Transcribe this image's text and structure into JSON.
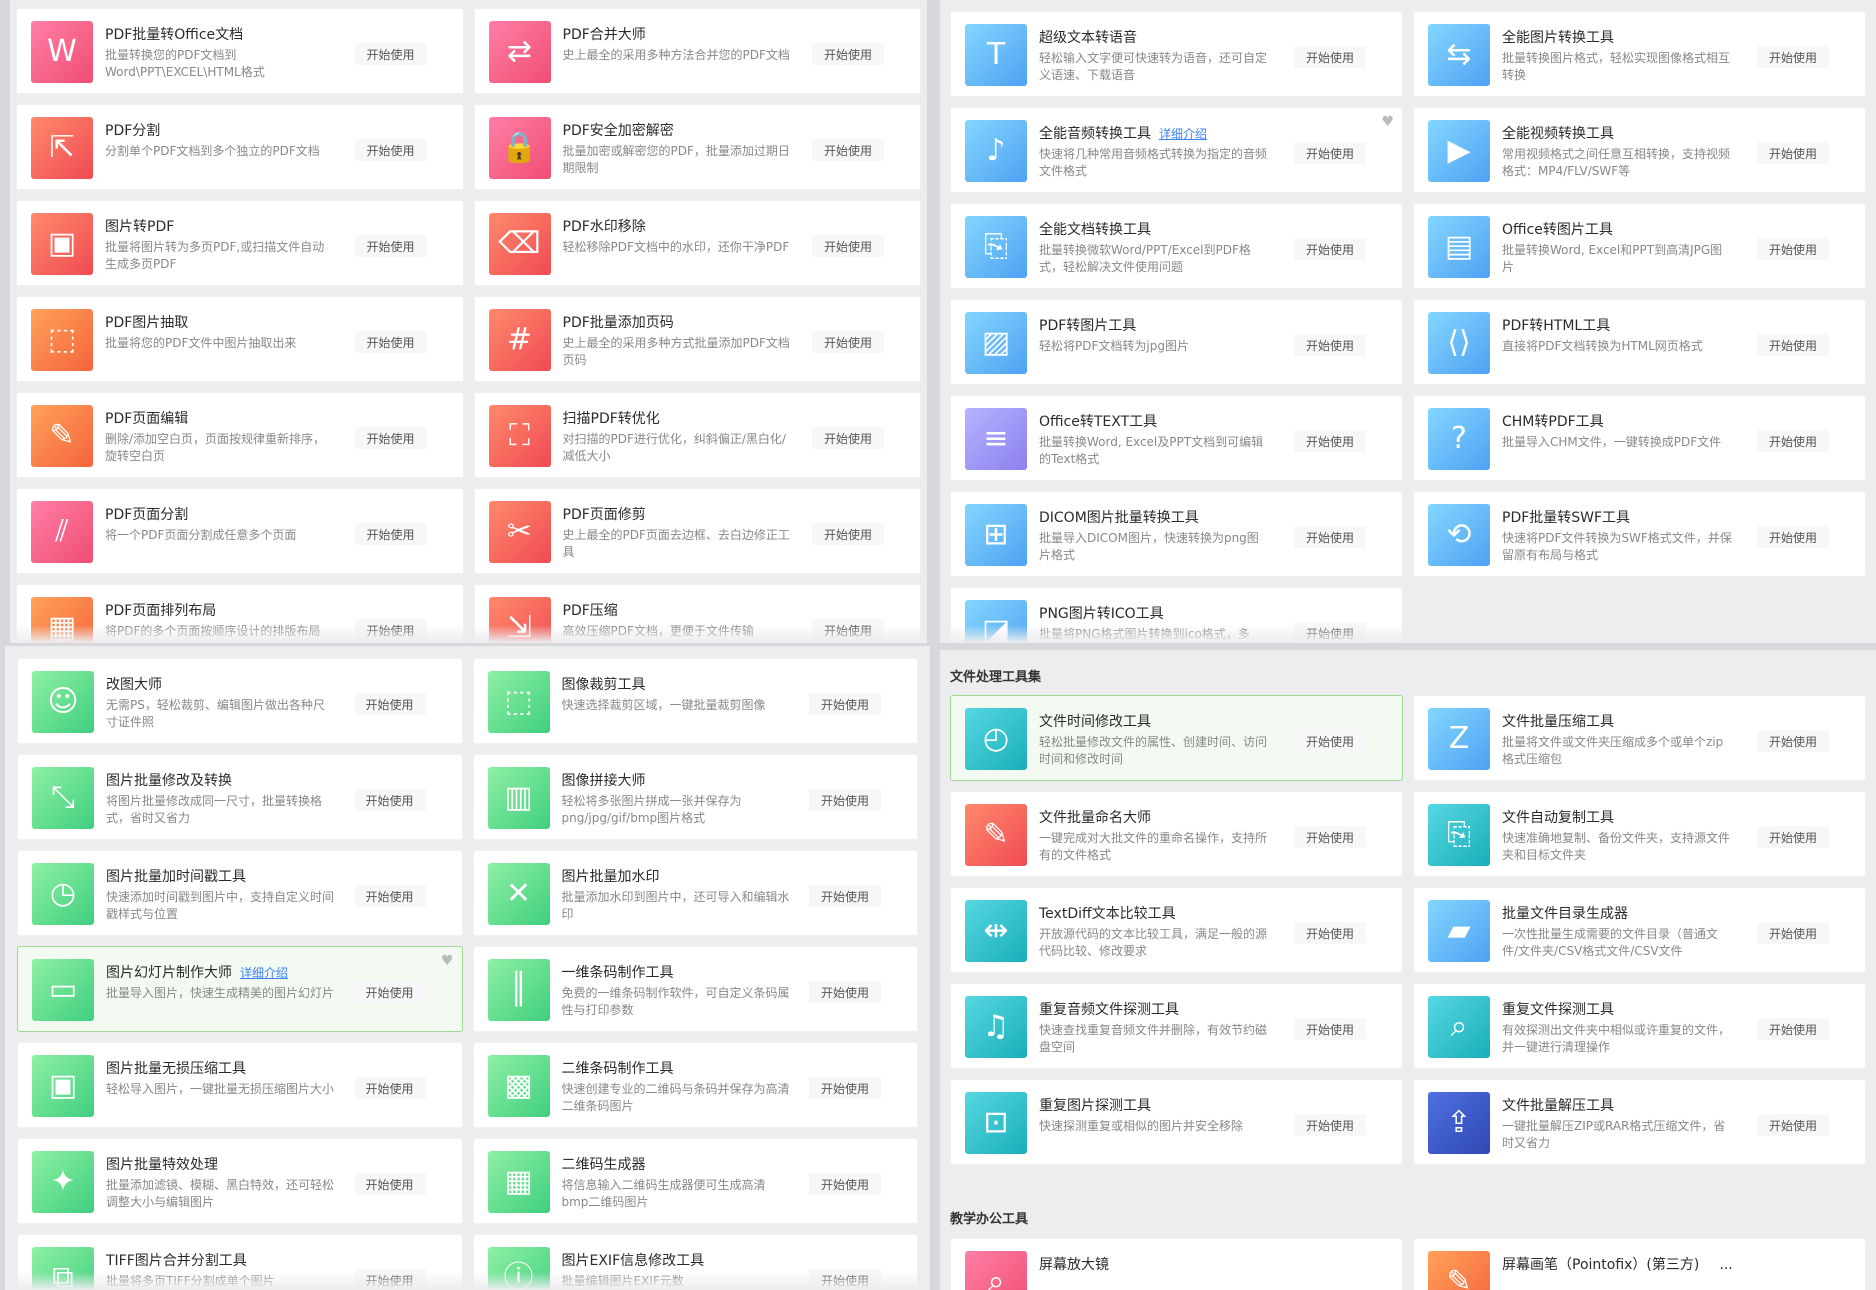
{
  "panel1": {
    "items": [
      {
        "title": "PDF批量转Office文档",
        "desc": "批量转换您的PDF文档到Word\\PPT\\EXCEL\\HTML格式",
        "button": "开始使用",
        "color": "pink",
        "icon": "word-pdf-icon"
      },
      {
        "title": "PDF合并大师",
        "desc": "史上最全的采用多种方法合并您的PDF文档",
        "button": "开始使用",
        "color": "pink",
        "icon": "merge-icon"
      },
      {
        "title": "PDF分割",
        "desc": "分割单个PDF文档到多个独立的PDF文档",
        "button": "开始使用",
        "color": "red",
        "icon": "split-icon"
      },
      {
        "title": "PDF安全加密解密",
        "desc": "批量加密或解密您的PDF，批量添加过期日期限制",
        "button": "开始使用",
        "color": "pink",
        "icon": "lock-icon"
      },
      {
        "title": "图片转PDF",
        "desc": "批量将图片转为多页PDF,或扫描文件自动生成多页PDF",
        "button": "开始使用",
        "color": "red",
        "icon": "image-pdf-icon"
      },
      {
        "title": "PDF水印移除",
        "desc": "轻松移除PDF文档中的水印，还你干净PDF",
        "button": "开始使用",
        "color": "red",
        "icon": "watermark-icon"
      },
      {
        "title": "PDF图片抽取",
        "desc": "批量将您的PDF文件中图片抽取出来",
        "button": "开始使用",
        "color": "orange",
        "icon": "extract-icon"
      },
      {
        "title": "PDF批量添加页码",
        "desc": "史上最全的采用多种方式批量添加PDF文档页码",
        "button": "开始使用",
        "color": "red",
        "icon": "page-number-icon"
      },
      {
        "title": "PDF页面编辑",
        "desc": "删除/添加空白页，页面按规律重新排序，旋转空白页",
        "button": "开始使用",
        "color": "orange",
        "icon": "edit-icon"
      },
      {
        "title": "扫描PDF转优化",
        "desc": "对扫描的PDF进行优化，纠斜偏正/黑白化/减低大小",
        "button": "开始使用",
        "color": "red",
        "icon": "scan-icon"
      },
      {
        "title": "PDF页面分割",
        "desc": "将一个PDF页面分割成任意多个页面",
        "button": "开始使用",
        "color": "pink",
        "icon": "page-split-icon"
      },
      {
        "title": "PDF页面修剪",
        "desc": "史上最全的PDF页面去边框、去白边修正工具",
        "button": "开始使用",
        "color": "red",
        "icon": "crop-icon"
      },
      {
        "title": "PDF页面排列布局",
        "desc": "将PDF的多个页面按顺序设计的排版布局",
        "button": "开始使用",
        "color": "orange",
        "icon": "layout-icon"
      },
      {
        "title": "PDF压缩",
        "desc": "高效压缩PDF文档，更便于文件传输",
        "button": "开始使用",
        "color": "red",
        "icon": "compress-icon"
      }
    ]
  },
  "panel2": {
    "items": [
      {
        "title": "超级文本转语音",
        "desc": "轻松输入文字便可快速转为语音，还可自定义语速、下载语音",
        "button": "开始使用",
        "color": "blue",
        "icon": "text-speech-icon"
      },
      {
        "title": "全能图片转换工具",
        "desc": "批量转换图片格式，轻松实现图像格式相互转换",
        "button": "开始使用",
        "color": "blue",
        "icon": "image-convert-icon"
      },
      {
        "title": "全能音频转换工具",
        "link": "详细介绍",
        "desc": "快速将几种常用音频格式转换为指定的音频文件格式",
        "button": "开始使用",
        "color": "blue",
        "icon": "audio-convert-icon",
        "heart": "♥"
      },
      {
        "title": "全能视频转换工具",
        "desc": "常用视频格式之间任意互相转换，支持视频格式：MP4/FLV/SWF等",
        "button": "开始使用",
        "color": "blue",
        "icon": "video-convert-icon"
      },
      {
        "title": "全能文档转换工具",
        "desc": "批量转换微软Word/PPT/Excel到PDF格式，轻松解决文件使用问题",
        "button": "开始使用",
        "color": "blue",
        "icon": "doc-convert-icon"
      },
      {
        "title": "Office转图片工具",
        "desc": "批量转换Word, Excel和PPT到高清JPG图片",
        "button": "开始使用",
        "color": "blue",
        "icon": "office-image-icon"
      },
      {
        "title": "PDF转图片工具",
        "desc": "轻松将PDF文档转为jpg图片",
        "button": "开始使用",
        "color": "blue",
        "icon": "pdf-image-icon"
      },
      {
        "title": "PDF转HTML工具",
        "desc": "直接将PDF文档转换为HTML网页格式",
        "button": "开始使用",
        "color": "blue",
        "icon": "pdf-html-icon"
      },
      {
        "title": "Office转TEXT工具",
        "desc": "批量转换Word, Excel及PPT文档到可编辑的Text格式",
        "button": "开始使用",
        "color": "purple",
        "icon": "office-text-icon"
      },
      {
        "title": "CHM转PDF工具",
        "desc": "批量导入CHM文件，一键转换成PDF文件",
        "button": "开始使用",
        "color": "blue",
        "icon": "chm-pdf-icon"
      },
      {
        "title": "DICOM图片批量转换工具",
        "desc": "批量导入DICOM图片，快速转换为png图片格式",
        "button": "开始使用",
        "color": "blue",
        "icon": "dicom-icon"
      },
      {
        "title": "PDF批量转SWF工具",
        "desc": "快速将PDF文件转换为SWF格式文件，并保留原有布局与格式",
        "button": "开始使用",
        "color": "blue",
        "icon": "pdf-swf-icon"
      },
      {
        "title": "PNG图片转ICO工具",
        "desc": "批量将PNG格式图片转换到ico格式，多",
        "button": "开始使用",
        "color": "blue",
        "icon": "png-ico-icon"
      }
    ]
  },
  "panel3": {
    "items": [
      {
        "title": "改图大师",
        "desc": "无需PS，轻松裁剪、编辑图片做出各种尺寸证件照",
        "button": "开始使用",
        "color": "green",
        "icon": "portrait-icon"
      },
      {
        "title": "图像裁剪工具",
        "desc": "快速选择裁剪区域，一键批量裁剪图像",
        "button": "开始使用",
        "color": "green",
        "icon": "crop-image-icon"
      },
      {
        "title": "图片批量修改及转换",
        "desc": "将图片批量修改成同一尺寸，批量转换格式，省时又省力",
        "button": "开始使用",
        "color": "green",
        "icon": "resize-icon"
      },
      {
        "title": "图像拼接大师",
        "desc": "轻松将多张图片拼成一张并保存为png/jpg/gif/bmp图片格式",
        "button": "开始使用",
        "color": "green",
        "icon": "stitch-icon"
      },
      {
        "title": "图片批量加时间戳工具",
        "desc": "快速添加时间戳到图片中，支持自定义时间戳样式与位置",
        "button": "开始使用",
        "color": "green",
        "icon": "timestamp-icon"
      },
      {
        "title": "图片批量加水印",
        "desc": "批量添加水印到图片中，还可导入和编辑水印",
        "button": "开始使用",
        "color": "green",
        "icon": "image-watermark-icon"
      },
      {
        "title": "图片幻灯片制作大师",
        "link": "详细介绍",
        "desc": "批量导入图片，快速生成精美的图片幻灯片",
        "button": "开始使用",
        "color": "green",
        "icon": "slideshow-icon",
        "heart": "♥",
        "highlight": true
      },
      {
        "title": "一维条码制作工具",
        "desc": "免费的一维条码制作软件，可自定义条码属性与打印参数",
        "button": "开始使用",
        "color": "green",
        "icon": "barcode-icon"
      },
      {
        "title": "图片批量无损压缩工具",
        "desc": "轻松导入图片，一键批量无损压缩图片大小",
        "button": "开始使用",
        "color": "green",
        "icon": "zip-image-icon"
      },
      {
        "title": "二维条码制作工具",
        "desc": "快速创建专业的二维码与条码并保存为高清二维条码图片",
        "button": "开始使用",
        "color": "green",
        "icon": "qrcode-maker-icon"
      },
      {
        "title": "图片批量特效处理",
        "desc": "批量添加滤镜、模糊、黑白特效，还可轻松调整大小与编辑图片",
        "button": "开始使用",
        "color": "green",
        "icon": "effects-icon"
      },
      {
        "title": "二维码生成器",
        "desc": "将信息输入二维码生成器便可生成高清bmp二维码图片",
        "button": "开始使用",
        "color": "green",
        "icon": "qrcode-icon"
      },
      {
        "title": "TIFF图片合并分割工具",
        "desc": "批量将多页TIFF分割成单个图片",
        "button": "开始使用",
        "color": "green",
        "icon": "tiff-icon"
      },
      {
        "title": "图片EXIF信息修改工具",
        "desc": "批量编辑图片EXIF元数",
        "button": "开始使用",
        "color": "green",
        "icon": "exif-icon"
      }
    ]
  },
  "panel4": {
    "section1": "文件处理工具集",
    "section2": "教学办公工具",
    "items": [
      {
        "title": "文件时间修改工具",
        "desc": "轻松批量修改文件的属性、创建时间、访问时间和修改时间",
        "button": "开始使用",
        "color": "teal",
        "icon": "file-time-icon",
        "highlight": true
      },
      {
        "title": "文件批量压缩工具",
        "desc": "批量将文件或文件夹压缩成多个或单个zip格式压缩包",
        "button": "开始使用",
        "color": "blue",
        "icon": "zip-icon"
      },
      {
        "title": "文件批量命名大师",
        "desc": "一键完成对大批文件的重命名操作，支持所有的文件格式",
        "button": "开始使用",
        "color": "red",
        "icon": "rename-icon"
      },
      {
        "title": "文件自动复制工具",
        "desc": "快速准确地复制、备份文件夹，支持源文件夹和目标文件夹",
        "button": "开始使用",
        "color": "teal",
        "icon": "copy-icon"
      },
      {
        "title": "TextDiff文本比较工具",
        "desc": "开放源代码的文本比较工具，满足一般的源代码比较、修改要求",
        "button": "开始使用",
        "color": "teal",
        "icon": "textdiff-icon"
      },
      {
        "title": "批量文件目录生成器",
        "desc": "一次性批量生成需要的文件目录（普通文件/文件夹/CSV格式文件/CSV文件",
        "button": "开始使用",
        "color": "blue",
        "icon": "folder-icon"
      },
      {
        "title": "重复音频文件探测工具",
        "desc": "快速查找重复音频文件并删除，有效节约磁盘空间",
        "button": "开始使用",
        "color": "teal",
        "icon": "music-icon"
      },
      {
        "title": "重复文件探测工具",
        "desc": "有效探测出文件夹中相似或许重复的文件，并一键进行清理操作",
        "button": "开始使用",
        "color": "teal",
        "icon": "duplicate-icon"
      },
      {
        "title": "重复图片探测工具",
        "desc": "快速探测重复或相似的图片并安全移除",
        "button": "开始使用",
        "color": "teal",
        "icon": "duplicate-image-icon"
      },
      {
        "title": "文件批量解压工具",
        "desc": "一键批量解压ZIP或RAR格式压缩文件，省时又省力",
        "button": "开始使用",
        "color": "navy",
        "icon": "unzip-icon"
      }
    ],
    "bottom": [
      {
        "title": "屏幕放大镜",
        "color": "pink",
        "icon": "magnifier-icon"
      },
      {
        "title": "屏幕画笔（Pointofix）(第三方)",
        "extra": "...",
        "color": "orange",
        "icon": "pen-icon"
      }
    ]
  }
}
